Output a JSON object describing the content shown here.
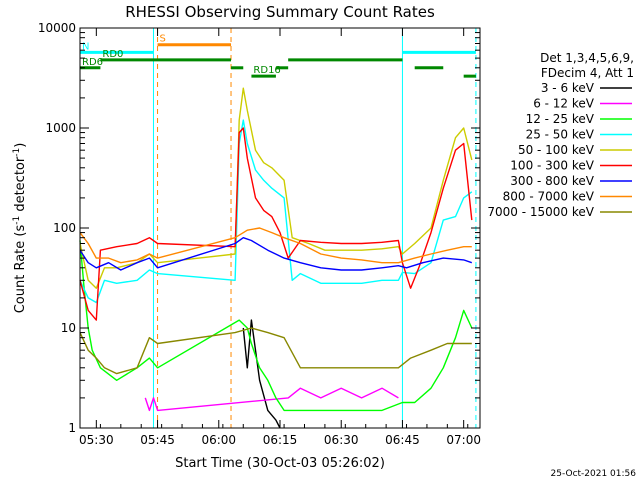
{
  "chart_data": {
    "type": "line",
    "title": "RHESSI Observing Summary Count Rates",
    "xlabel": "Start Time (30-Oct-03 05:26:02)",
    "ylabel_main": "Count Rate (s",
    "ylabel_sup1": "-1",
    "ylabel_mid": " detector",
    "ylabel_sup2": "-1",
    "ylabel_end": ")",
    "y_scale": "log",
    "ylim": [
      1,
      10000
    ],
    "xlim": [
      "05:26",
      "07:04"
    ],
    "x_ticks": [
      {
        "t": "05:30",
        "label": "05:30"
      },
      {
        "t": "05:45",
        "label": "05:45"
      },
      {
        "t": "06:00",
        "label": "06:00"
      },
      {
        "t": "06:15",
        "label": "06:15"
      },
      {
        "t": "06:30",
        "label": "06:30"
      },
      {
        "t": "06:45",
        "label": "06:45"
      },
      {
        "t": "07:00",
        "label": "07:00"
      }
    ],
    "y_ticks": [
      {
        "v": 1,
        "label": "1"
      },
      {
        "v": 10,
        "label": "10"
      },
      {
        "v": 100,
        "label": "100"
      },
      {
        "v": 1000,
        "label": "1000"
      },
      {
        "v": 10000,
        "label": "10000"
      }
    ],
    "timestamp": "25-Oct-2021 01:56",
    "legend": {
      "placement": "right",
      "header": [
        "Det 1,3,4,5,6,9,",
        "FDecim 4, Att 1"
      ]
    },
    "series": [
      {
        "name": "3 - 6 keV",
        "color": "#000000",
        "points": [
          [
            "06:06",
            10
          ],
          [
            "06:07",
            4
          ],
          [
            "06:08",
            12
          ],
          [
            "06:09",
            6
          ],
          [
            "06:10",
            3
          ],
          [
            "06:12",
            1.5
          ],
          [
            "06:14",
            1.2
          ],
          [
            "06:15",
            1
          ]
        ]
      },
      {
        "name": "6 - 12 keV",
        "color": "#ff00ff",
        "points": [
          [
            "05:42",
            2
          ],
          [
            "05:43",
            1.5
          ],
          [
            "05:44",
            2
          ],
          [
            "05:45",
            1.5
          ],
          [
            "06:17",
            2
          ],
          [
            "06:20",
            2.5
          ],
          [
            "06:25",
            2
          ],
          [
            "06:30",
            2.5
          ],
          [
            "06:35",
            2
          ],
          [
            "06:40",
            2.5
          ],
          [
            "06:44",
            2
          ]
        ]
      },
      {
        "name": "12 - 25 keV",
        "color": "#00ff00",
        "points": [
          [
            "05:26",
            75
          ],
          [
            "05:27",
            25
          ],
          [
            "05:28",
            10
          ],
          [
            "05:29",
            6
          ],
          [
            "05:31",
            4
          ],
          [
            "05:35",
            3
          ],
          [
            "05:40",
            4
          ],
          [
            "05:43",
            5
          ],
          [
            "05:45",
            4
          ],
          [
            "06:05",
            12
          ],
          [
            "06:07",
            10
          ],
          [
            "06:08",
            7
          ],
          [
            "06:10",
            4
          ],
          [
            "06:12",
            3
          ],
          [
            "06:14",
            2
          ],
          [
            "06:16",
            1.5
          ],
          [
            "06:20",
            1.5
          ],
          [
            "06:30",
            1.5
          ],
          [
            "06:40",
            1.5
          ],
          [
            "06:45",
            1.8
          ],
          [
            "06:48",
            1.8
          ],
          [
            "06:52",
            2.5
          ],
          [
            "06:55",
            4
          ],
          [
            "06:58",
            8
          ],
          [
            "07:00",
            15
          ],
          [
            "07:02",
            10
          ]
        ]
      },
      {
        "name": "25 - 50 keV",
        "color": "#00ffff",
        "points": [
          [
            "05:26",
            30
          ],
          [
            "05:28",
            20
          ],
          [
            "05:30",
            18
          ],
          [
            "05:32",
            30
          ],
          [
            "05:35",
            28
          ],
          [
            "05:40",
            30
          ],
          [
            "05:43",
            38
          ],
          [
            "05:45",
            35
          ],
          [
            "06:04",
            30
          ],
          [
            "06:05",
            700
          ],
          [
            "06:06",
            1200
          ],
          [
            "06:07",
            700
          ],
          [
            "06:09",
            380
          ],
          [
            "06:11",
            300
          ],
          [
            "06:13",
            250
          ],
          [
            "06:16",
            200
          ],
          [
            "06:18",
            30
          ],
          [
            "06:20",
            35
          ],
          [
            "06:25",
            28
          ],
          [
            "06:30",
            28
          ],
          [
            "06:35",
            28
          ],
          [
            "06:40",
            30
          ],
          [
            "06:44",
            30
          ],
          [
            "06:45",
            36
          ],
          [
            "06:48",
            35
          ],
          [
            "06:52",
            45
          ],
          [
            "06:55",
            120
          ],
          [
            "06:58",
            130
          ],
          [
            "07:00",
            200
          ],
          [
            "07:02",
            230
          ]
        ]
      },
      {
        "name": "50 - 100 keV",
        "color": "#cccc00",
        "points": [
          [
            "05:26",
            70
          ],
          [
            "05:28",
            30
          ],
          [
            "05:30",
            25
          ],
          [
            "05:32",
            40
          ],
          [
            "05:35",
            40
          ],
          [
            "05:40",
            45
          ],
          [
            "05:43",
            55
          ],
          [
            "05:45",
            45
          ],
          [
            "06:04",
            55
          ],
          [
            "06:05",
            1200
          ],
          [
            "06:06",
            2500
          ],
          [
            "06:07",
            1500
          ],
          [
            "06:09",
            600
          ],
          [
            "06:11",
            450
          ],
          [
            "06:13",
            400
          ],
          [
            "06:16",
            300
          ],
          [
            "06:18",
            80
          ],
          [
            "06:22",
            70
          ],
          [
            "06:26",
            60
          ],
          [
            "06:30",
            60
          ],
          [
            "06:35",
            60
          ],
          [
            "06:40",
            62
          ],
          [
            "06:44",
            65
          ],
          [
            "06:45",
            55
          ],
          [
            "06:48",
            70
          ],
          [
            "06:52",
            100
          ],
          [
            "06:55",
            300
          ],
          [
            "06:58",
            800
          ],
          [
            "07:00",
            1000
          ],
          [
            "07:02",
            480
          ]
        ]
      },
      {
        "name": "100 - 300 keV",
        "color": "#ff0000",
        "points": [
          [
            "05:26",
            30
          ],
          [
            "05:28",
            15
          ],
          [
            "05:30",
            12
          ],
          [
            "05:31",
            60
          ],
          [
            "05:35",
            65
          ],
          [
            "05:40",
            70
          ],
          [
            "05:43",
            80
          ],
          [
            "05:45",
            70
          ],
          [
            "06:04",
            65
          ],
          [
            "06:05",
            900
          ],
          [
            "06:06",
            1000
          ],
          [
            "06:07",
            500
          ],
          [
            "06:09",
            200
          ],
          [
            "06:11",
            150
          ],
          [
            "06:13",
            130
          ],
          [
            "06:15",
            90
          ],
          [
            "06:17",
            50
          ],
          [
            "06:20",
            75
          ],
          [
            "06:25",
            72
          ],
          [
            "06:30",
            70
          ],
          [
            "06:35",
            70
          ],
          [
            "06:40",
            72
          ],
          [
            "06:44",
            75
          ],
          [
            "06:45",
            45
          ],
          [
            "06:47",
            25
          ],
          [
            "06:49",
            40
          ],
          [
            "06:52",
            90
          ],
          [
            "06:55",
            250
          ],
          [
            "06:58",
            600
          ],
          [
            "07:00",
            700
          ],
          [
            "07:02",
            120
          ]
        ]
      },
      {
        "name": "300 - 800 keV",
        "color": "#0000ff",
        "points": [
          [
            "05:26",
            60
          ],
          [
            "05:28",
            45
          ],
          [
            "05:30",
            40
          ],
          [
            "05:33",
            45
          ],
          [
            "05:36",
            38
          ],
          [
            "05:40",
            45
          ],
          [
            "05:43",
            50
          ],
          [
            "05:45",
            40
          ],
          [
            "06:04",
            70
          ],
          [
            "06:06",
            80
          ],
          [
            "06:08",
            75
          ],
          [
            "06:12",
            60
          ],
          [
            "06:16",
            50
          ],
          [
            "06:20",
            45
          ],
          [
            "06:25",
            40
          ],
          [
            "06:30",
            38
          ],
          [
            "06:35",
            38
          ],
          [
            "06:40",
            40
          ],
          [
            "06:44",
            42
          ],
          [
            "06:46",
            40
          ],
          [
            "06:50",
            45
          ],
          [
            "06:55",
            50
          ],
          [
            "07:00",
            48
          ],
          [
            "07:02",
            45
          ]
        ]
      },
      {
        "name": "800 - 7000 keV",
        "color": "#ff8800",
        "points": [
          [
            "05:26",
            90
          ],
          [
            "05:28",
            70
          ],
          [
            "05:30",
            50
          ],
          [
            "05:33",
            50
          ],
          [
            "05:36",
            45
          ],
          [
            "05:40",
            48
          ],
          [
            "05:43",
            55
          ],
          [
            "05:45",
            50
          ],
          [
            "06:04",
            80
          ],
          [
            "06:07",
            95
          ],
          [
            "06:10",
            100
          ],
          [
            "06:13",
            90
          ],
          [
            "06:16",
            80
          ],
          [
            "06:20",
            70
          ],
          [
            "06:25",
            55
          ],
          [
            "06:30",
            50
          ],
          [
            "06:35",
            48
          ],
          [
            "06:40",
            45
          ],
          [
            "06:44",
            45
          ],
          [
            "06:48",
            50
          ],
          [
            "06:52",
            55
          ],
          [
            "06:56",
            60
          ],
          [
            "07:00",
            65
          ],
          [
            "07:02",
            65
          ]
        ]
      },
      {
        "name": "7000 - 15000 keV",
        "color": "#888800",
        "points": [
          [
            "05:26",
            9
          ],
          [
            "05:28",
            6
          ],
          [
            "05:30",
            5
          ],
          [
            "05:32",
            4
          ],
          [
            "05:35",
            3.5
          ],
          [
            "05:40",
            4
          ],
          [
            "05:43",
            8
          ],
          [
            "05:45",
            7
          ],
          [
            "06:04",
            9
          ],
          [
            "06:08",
            10
          ],
          [
            "06:12",
            9
          ],
          [
            "06:16",
            8
          ],
          [
            "06:20",
            4
          ],
          [
            "06:25",
            4
          ],
          [
            "06:30",
            4
          ],
          [
            "06:35",
            4
          ],
          [
            "06:40",
            4
          ],
          [
            "06:44",
            4
          ],
          [
            "06:47",
            5
          ],
          [
            "06:52",
            6
          ],
          [
            "06:56",
            7
          ],
          [
            "07:00",
            7
          ],
          [
            "07:02",
            7
          ]
        ]
      }
    ],
    "state_bars": [
      {
        "label": "S",
        "label_color": "#ff8800",
        "color": "#ff8800",
        "level": 6800,
        "segments": [
          [
            "05:45",
            "06:03"
          ]
        ]
      },
      {
        "label": "N",
        "label_color": "#00ffff",
        "color": "#00ffff",
        "level": 5700,
        "segments": [
          [
            "05:26",
            "05:44"
          ],
          [
            "06:45",
            "07:03"
          ]
        ]
      },
      {
        "label": "RD0",
        "label_color": "#008800",
        "color": "#008800",
        "level": 4800,
        "segments": [
          [
            "05:31",
            "06:03"
          ],
          [
            "06:17",
            "06:45"
          ]
        ]
      },
      {
        "label": "RD6",
        "label_color": "#008800",
        "color": "#008800",
        "level": 4000,
        "segments": [
          [
            "05:26",
            "05:31"
          ],
          [
            "06:03",
            "06:06"
          ],
          [
            "06:14",
            "06:17"
          ],
          [
            "06:48",
            "06:55"
          ]
        ]
      },
      {
        "label": "RD16",
        "label_color": "#008800",
        "color": "#008800",
        "level": 3300,
        "segments": [
          [
            "06:08",
            "06:14"
          ],
          [
            "07:00",
            "07:03"
          ]
        ]
      }
    ],
    "vlines": [
      {
        "t": "05:44",
        "color": "#00ffff",
        "style": "solid"
      },
      {
        "t": "05:45",
        "color": "#ff8800",
        "style": "dashed"
      },
      {
        "t": "06:03",
        "color": "#ff8800",
        "style": "dashed"
      },
      {
        "t": "06:45",
        "color": "#00ffff",
        "style": "solid"
      },
      {
        "t": "07:03",
        "color": "#00ffff",
        "style": "dashed"
      }
    ]
  }
}
